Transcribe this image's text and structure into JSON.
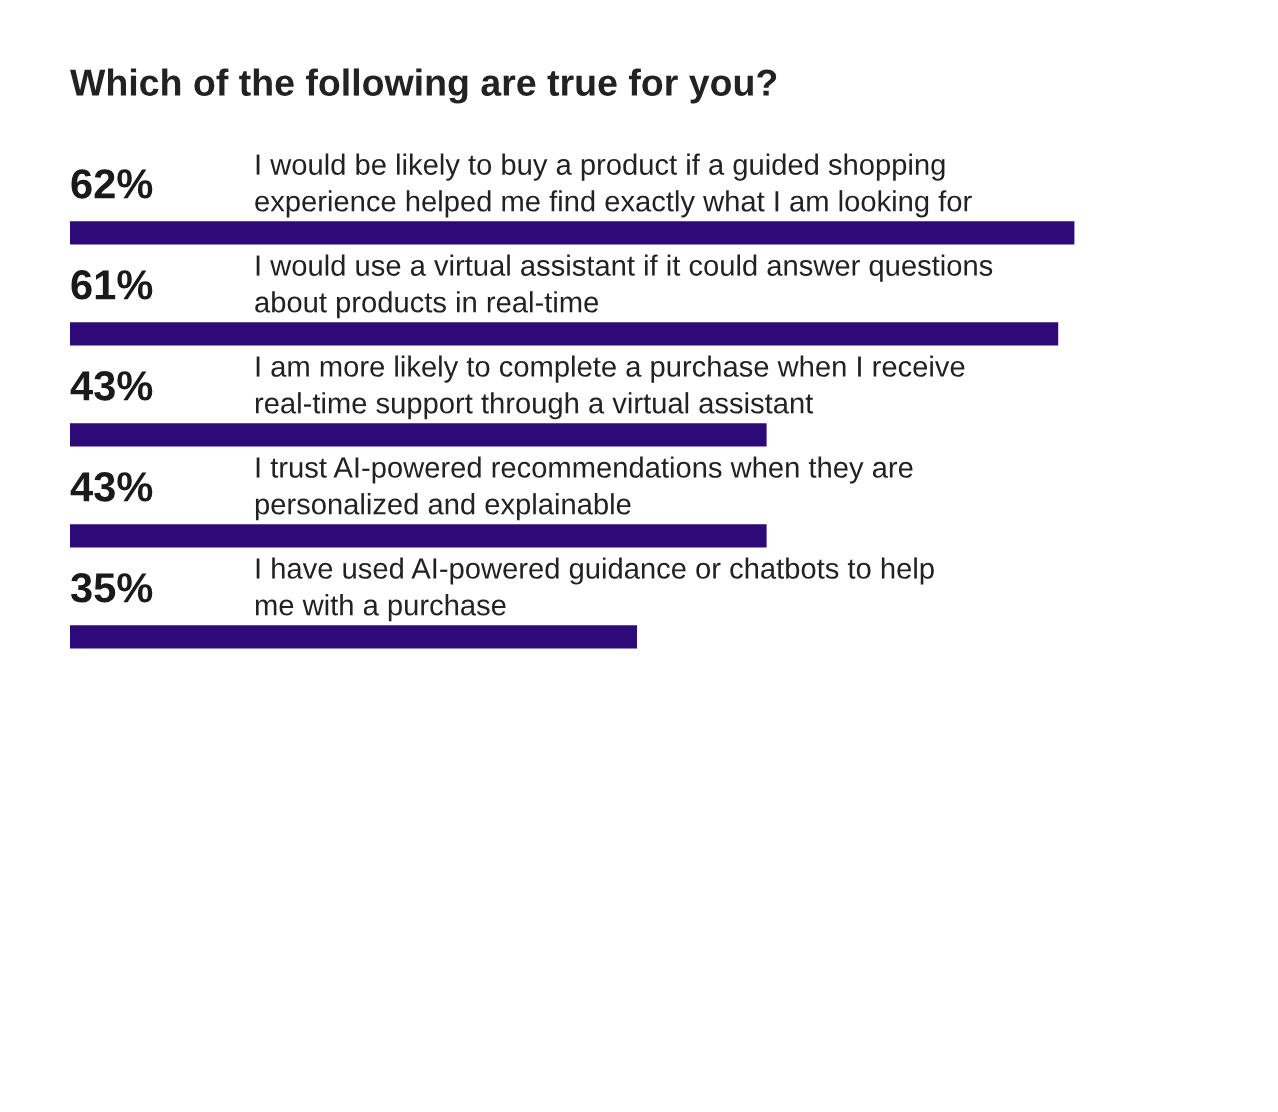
{
  "chart_data": {
    "type": "bar",
    "orientation": "horizontal",
    "title": "Which of the following are true for you?",
    "categories": [
      "I would be likely to buy a product if a guided shopping\nexperience helped me find exactly what I am looking for",
      "I would use a virtual assistant if it could answer questions\nabout products in real-time",
      "I am more likely to complete a purchase when I receive\nreal-time support through a virtual assistant",
      "I trust AI-powered recommendations when they are\npersonalized and explainable",
      "I have used AI-powered guidance or chatbots to help\nme with a purchase"
    ],
    "values": [
      62,
      61,
      43,
      43,
      35
    ],
    "value_labels": [
      "62%",
      "61%",
      "43%",
      "43%",
      "35%"
    ],
    "color": "#2d0a78"
  }
}
